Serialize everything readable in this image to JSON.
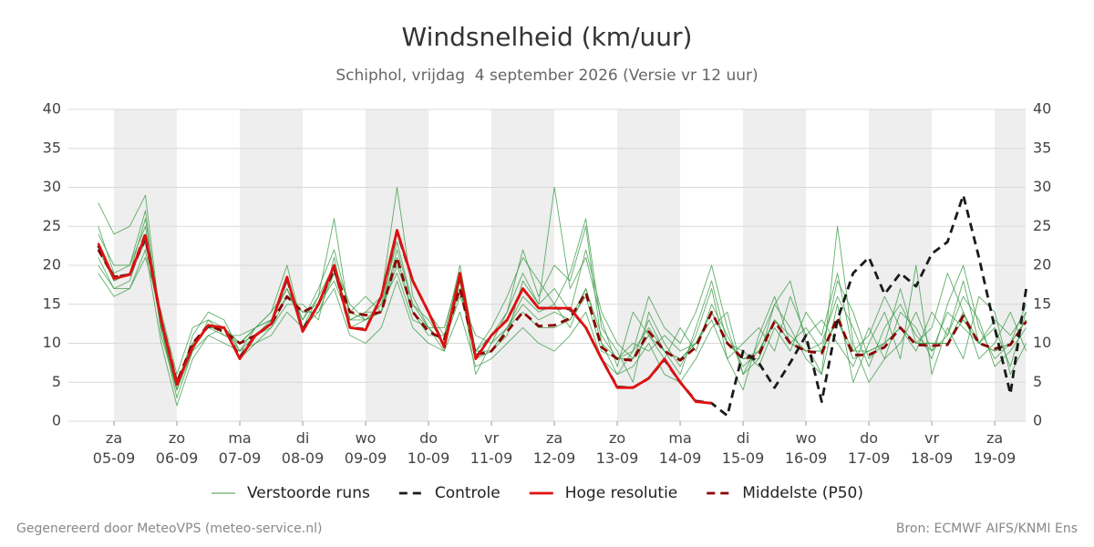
{
  "chart_data": {
    "type": "line",
    "title": "Windsnelheid (km/uur)",
    "subtitle": "Schiphol, vrijdag  4 september 2026 (Versie vr 12 uur)",
    "footer_left": "Gegenereerd door MeteoVPS (meteo-service.nl)",
    "footer_right": "Bron: ECMWF AIFS/KNMI Ens",
    "x": [
      -6,
      0,
      6,
      12,
      18,
      24,
      30,
      36,
      42,
      48,
      54,
      60,
      66,
      72,
      78,
      84,
      90,
      96,
      102,
      108,
      114,
      120,
      126,
      132,
      138,
      144,
      150,
      156,
      162,
      168,
      174,
      180,
      186,
      192,
      198,
      204,
      210,
      216,
      222,
      228,
      234,
      240,
      246,
      252,
      258,
      264,
      270,
      276,
      282,
      288,
      294,
      300,
      306,
      312,
      318,
      324,
      330,
      336,
      342,
      348
    ],
    "xlim": [
      -17.4,
      347.8
    ],
    "xticks": [
      {
        "value": 0,
        "label": "za 05-09"
      },
      {
        "value": 24,
        "label": "zo 06-09"
      },
      {
        "value": 48,
        "label": "ma 07-09"
      },
      {
        "value": 72,
        "label": "di 08-09"
      },
      {
        "value": 96,
        "label": "wo 09-09"
      },
      {
        "value": 120,
        "label": "do 10-09"
      },
      {
        "value": 144,
        "label": "vr 11-09"
      },
      {
        "value": 168,
        "label": "za 12-09"
      },
      {
        "value": 192,
        "label": "zo 13-09"
      },
      {
        "value": 216,
        "label": "ma 14-09"
      },
      {
        "value": 240,
        "label": "di 15-09"
      },
      {
        "value": 264,
        "label": "wo 16-09"
      },
      {
        "value": 288,
        "label": "do 17-09"
      },
      {
        "value": 312,
        "label": "vr 18-09"
      },
      {
        "value": 336,
        "label": "za 19-09"
      }
    ],
    "ylim": [
      0,
      40
    ],
    "yticks": [
      0,
      5,
      10,
      15,
      20,
      25,
      30,
      35,
      40
    ],
    "y2lim": [
      0,
      40
    ],
    "y2ticks": [
      0,
      5,
      10,
      15,
      20,
      25,
      30,
      35,
      40
    ],
    "grid": true,
    "shade_alternate_days": true,
    "legend": "bottom",
    "ensemble": {
      "name": "Verstoorde runs",
      "color": "#3a9a45",
      "members": [
        [
          28,
          24,
          25,
          29,
          12,
          3,
          9,
          13,
          11,
          10,
          12,
          14,
          20,
          12,
          16,
          26,
          13,
          14,
          16,
          30,
          16,
          12,
          9,
          18,
          6,
          10,
          14,
          22,
          16,
          20,
          18,
          25,
          10,
          6,
          9,
          16,
          12,
          10,
          14,
          20,
          12,
          6,
          8,
          15,
          12,
          8,
          6,
          25,
          10,
          5,
          8,
          14,
          12,
          8,
          15,
          20,
          12,
          8,
          10,
          15
        ],
        [
          20,
          17,
          17,
          22,
          10,
          2,
          8,
          11,
          10,
          9,
          10,
          11,
          14,
          12,
          14,
          17,
          11,
          10,
          12,
          18,
          12,
          10,
          9,
          14,
          7,
          8,
          10,
          12,
          10,
          9,
          11,
          14,
          8,
          6,
          7,
          10,
          6,
          5,
          8,
          12,
          14,
          6,
          10,
          15,
          18,
          10,
          6,
          15,
          5,
          10,
          14,
          8,
          20,
          6,
          12,
          8,
          16,
          14,
          6,
          10
        ],
        [
          25,
          19,
          20,
          27,
          11,
          4,
          11,
          14,
          13,
          9,
          12,
          13,
          18,
          13,
          17,
          22,
          14,
          16,
          14,
          24,
          18,
          14,
          11,
          20,
          9,
          12,
          16,
          21,
          18,
          15,
          19,
          26,
          12,
          9,
          5,
          14,
          10,
          7,
          11,
          17,
          8,
          4,
          11,
          16,
          10,
          12,
          9,
          18,
          14,
          8,
          10,
          17,
          10,
          12,
          19,
          14,
          8,
          10,
          14,
          9
        ],
        [
          19,
          16,
          17,
          21,
          14,
          6,
          12,
          13,
          12,
          8,
          10,
          12,
          15,
          15,
          13,
          21,
          12,
          13,
          15,
          19,
          13,
          12,
          10,
          16,
          11,
          10,
          12,
          16,
          14,
          15,
          12,
          17,
          11,
          8,
          10,
          9,
          11,
          9,
          10,
          13,
          8,
          10,
          12,
          9,
          16,
          11,
          13,
          10,
          7,
          12,
          8,
          10,
          14,
          9,
          11,
          16,
          13,
          7,
          9,
          12
        ],
        [
          22,
          18,
          19,
          26,
          13,
          5,
          10,
          12,
          11,
          11,
          12,
          14,
          17,
          13,
          16,
          20,
          15,
          13,
          15,
          23,
          15,
          12,
          12,
          19,
          8,
          9,
          11,
          18,
          15,
          17,
          14,
          22,
          14,
          10,
          8,
          13,
          9,
          6,
          12,
          18,
          10,
          9,
          7,
          12,
          9,
          14,
          11,
          19,
          9,
          11,
          16,
          12,
          9,
          14,
          11,
          18,
          10,
          12,
          7,
          14
        ],
        [
          24,
          20,
          20,
          25,
          12,
          4,
          9,
          11,
          12,
          9,
          11,
          13,
          17,
          12,
          15,
          18,
          13,
          14,
          14,
          22,
          15,
          13,
          10,
          18,
          9,
          11,
          14,
          19,
          15,
          30,
          17,
          21,
          13,
          7,
          14,
          11,
          8,
          12,
          9,
          15,
          11,
          7,
          9,
          13,
          11,
          9,
          10,
          16,
          12,
          7,
          12,
          15,
          11,
          9,
          14,
          12,
          10,
          13,
          11,
          14
        ],
        [
          21,
          17,
          18,
          24,
          13,
          5,
          10,
          12,
          12,
          10,
          12,
          13,
          16,
          14,
          14,
          19,
          13,
          13,
          14,
          20,
          14,
          11,
          11,
          17,
          8,
          9,
          12,
          15,
          13,
          14,
          13,
          17,
          10,
          8,
          9,
          12,
          9,
          8,
          10,
          14,
          10,
          8,
          8,
          13,
          10,
          9,
          9,
          13,
          9,
          9,
          10,
          12,
          10,
          10,
          10,
          14,
          10,
          9,
          10,
          13
        ],
        [
          23,
          18,
          19,
          23,
          12,
          4,
          10,
          12,
          12,
          10,
          11,
          12,
          16,
          14,
          15,
          19,
          14,
          13,
          14,
          21,
          14,
          12,
          10,
          17,
          9,
          9,
          12,
          14,
          12,
          12,
          13,
          16,
          9,
          8,
          8,
          11,
          9,
          8,
          10,
          14,
          10,
          8,
          9,
          13,
          10,
          9,
          9,
          13,
          8,
          9,
          10,
          12,
          10,
          10,
          10,
          13,
          10,
          9,
          10,
          13
        ]
      ]
    },
    "series": [
      {
        "name": "Controle",
        "color": "#1a1a1a",
        "style": "dashed",
        "values": [
          22.5,
          18.5,
          18.8,
          23.5,
          13,
          4.8,
          9.6,
          12.2,
          12,
          8.2,
          11,
          12.5,
          18.3,
          11.7,
          15,
          19.8,
          12,
          11.8,
          16,
          24.3,
          18,
          14,
          9.6,
          18.8,
          8.1,
          11,
          13,
          17,
          14.5,
          14.5,
          14.4,
          12,
          8,
          4.4,
          4.3,
          5.5,
          7.9,
          5,
          2.6,
          2.3,
          0.7,
          9,
          7.5,
          4.3,
          7.5,
          11,
          2.5,
          13,
          19,
          21,
          16.3,
          19,
          17.3,
          21.5,
          23,
          29,
          21,
          12,
          3.5,
          17
        ]
      },
      {
        "name": "Hoge resolutie",
        "color": "#e01010",
        "style": "solid",
        "values": [
          22.8,
          18.3,
          18.8,
          23.8,
          13,
          4.7,
          9.5,
          12.3,
          12,
          8,
          11,
          12.5,
          18.5,
          11.5,
          15,
          20,
          12,
          11.7,
          16,
          24.5,
          18,
          14,
          9.5,
          19,
          8,
          11,
          13,
          17,
          14.5,
          14.5,
          14.5,
          12,
          8,
          4.3,
          4.3,
          5.5,
          8,
          5,
          2.5,
          2.3,
          null,
          null,
          null,
          null,
          null,
          null,
          null,
          null,
          null,
          null,
          null,
          null,
          null,
          null,
          null,
          null,
          null,
          null,
          null,
          null
        ]
      },
      {
        "name": "Middelste (P50)",
        "color": "#8b0000",
        "style": "dashed",
        "values": [
          22,
          18.5,
          18.8,
          24,
          13,
          5,
          10,
          12.3,
          11.5,
          10,
          11,
          12.5,
          16,
          14,
          15,
          19.5,
          14,
          13.6,
          14,
          21,
          14,
          11.5,
          10.5,
          17,
          8.5,
          9,
          11.5,
          14,
          12.2,
          12.3,
          13.2,
          16.5,
          9.5,
          8,
          7.8,
          11.5,
          9,
          7.8,
          9.5,
          14,
          10,
          8,
          8.5,
          12.8,
          10,
          9,
          8.7,
          13.3,
          8.5,
          8.5,
          9.5,
          12,
          9.8,
          9.7,
          9.8,
          13.5,
          10,
          9.3,
          9.8,
          12.8
        ]
      }
    ]
  }
}
